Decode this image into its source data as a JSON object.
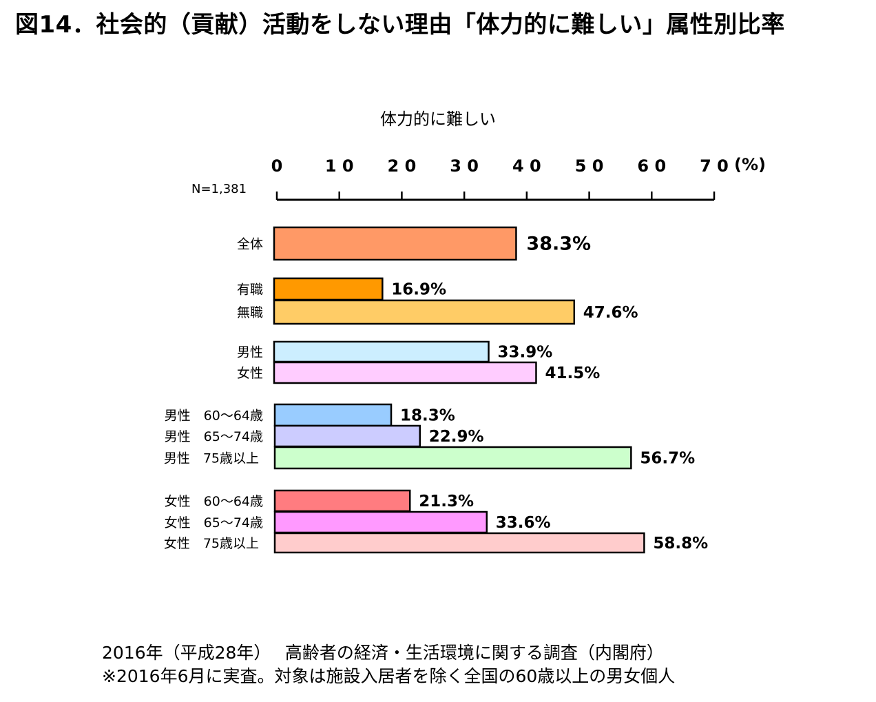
{
  "title": "図14．社会的（貢献）活動をしない理由「体力的に難しい」属性別比率",
  "chart_data": {
    "type": "bar",
    "orientation": "horizontal",
    "title": "体力的に難しい",
    "n_label": "N=1,381",
    "unit_label": "(%)",
    "xlim": [
      0,
      70
    ],
    "ticks": [
      0,
      10,
      20,
      30,
      40,
      50,
      60,
      70
    ],
    "tick_labels": [
      "0",
      "1 0",
      "2 0",
      "3 0",
      "4 0",
      "5 0",
      "6 0",
      "7 0"
    ],
    "grid": false,
    "categories": [
      "全体",
      "有職",
      "無職",
      "男性",
      "女性",
      "男性　60～64歳",
      "男性　65～74歳",
      "男性　75歳以上",
      "女性　60～64歳",
      "女性　65～74歳",
      "女性　75歳以上"
    ],
    "values": [
      38.3,
      16.9,
      47.6,
      33.9,
      41.5,
      18.3,
      22.9,
      56.7,
      21.3,
      33.6,
      58.8
    ],
    "value_labels": [
      "38.3%",
      "16.9%",
      "47.6%",
      "33.9%",
      "41.5%",
      "18.3%",
      "22.9%",
      "56.7%",
      "21.3%",
      "33.6%",
      "58.8%"
    ],
    "colors": [
      "#ff9966",
      "#ff9900",
      "#ffcc66",
      "#cceeff",
      "#ffccff",
      "#99ccff",
      "#ccccff",
      "#ccffcc",
      "#ff7c80",
      "#ff99ff",
      "#ffcccc"
    ]
  },
  "footer": {
    "line1": "2016年（平成28年）　 高齢者の経済・生活環境に関する調査（内閣府）",
    "line2": "※2016年6月に実査。対象は施設入居者を除く全国の60歳以上の男女個人"
  }
}
